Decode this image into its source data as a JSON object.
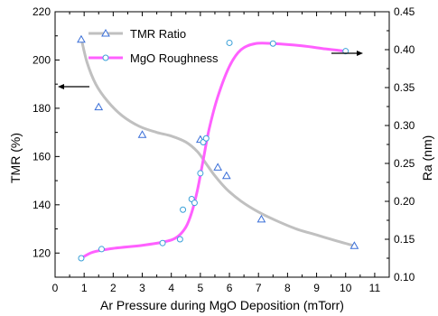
{
  "chart_data": {
    "type": "line",
    "xlabel": "Ar  Pressure during MgO Deposition (mTorr)",
    "ylabel_left": "TMR (%)",
    "ylabel_right": "Ra (nm)",
    "xlim": [
      0,
      11.5
    ],
    "ylim_left": [
      110,
      220
    ],
    "ylim_right": [
      0.1,
      0.45
    ],
    "x_ticks": [
      "0",
      "1",
      "2",
      "3",
      "4",
      "5",
      "6",
      "7",
      "8",
      "9",
      "10",
      "11"
    ],
    "y_left_ticks": [
      "120",
      "140",
      "160",
      "180",
      "200",
      "220"
    ],
    "y_right_ticks": [
      "0.10",
      "0.15",
      "0.20",
      "0.25",
      "0.30",
      "0.35",
      "0.40",
      "0.45"
    ],
    "legend_position": "top-left",
    "series": [
      {
        "name": "TMR Ratio",
        "axis": "left",
        "color": "#c0c0c0",
        "marker": "triangle",
        "marker_color": "#3a6fd8",
        "points": [
          [
            0.9,
            208.5
          ],
          [
            1.5,
            180.5
          ],
          [
            3.0,
            169
          ],
          [
            5.0,
            167
          ],
          [
            5.6,
            155.5
          ],
          [
            5.9,
            152
          ],
          [
            7.1,
            134
          ],
          [
            10.3,
            123
          ]
        ],
        "fit": [
          [
            0.9,
            209
          ],
          [
            1.1,
            199
          ],
          [
            1.4,
            190
          ],
          [
            1.8,
            183
          ],
          [
            2.3,
            177
          ],
          [
            2.9,
            172.5
          ],
          [
            3.5,
            170
          ],
          [
            4.0,
            168.5
          ],
          [
            4.5,
            166
          ],
          [
            4.9,
            162
          ],
          [
            5.2,
            157
          ],
          [
            5.5,
            152
          ],
          [
            5.9,
            146.5
          ],
          [
            6.4,
            141.5
          ],
          [
            7.0,
            137
          ],
          [
            7.6,
            133.5
          ],
          [
            8.3,
            130
          ],
          [
            9.0,
            127.5
          ],
          [
            9.7,
            125
          ],
          [
            10.3,
            123
          ]
        ]
      },
      {
        "name": "MgO Roughness",
        "axis": "right",
        "color": "#ff60ff",
        "marker": "circle",
        "marker_color": "#3aa0d8",
        "points": [
          [
            0.9,
            0.125
          ],
          [
            1.6,
            0.137
          ],
          [
            3.7,
            0.145
          ],
          [
            4.3,
            0.15
          ],
          [
            4.4,
            0.189
          ],
          [
            4.7,
            0.203
          ],
          [
            4.8,
            0.198
          ],
          [
            5.0,
            0.237
          ],
          [
            5.1,
            0.278
          ],
          [
            5.2,
            0.283
          ],
          [
            6.0,
            0.409
          ],
          [
            7.5,
            0.408
          ],
          [
            10.0,
            0.398
          ]
        ],
        "fit": [
          [
            0.9,
            0.125
          ],
          [
            1.3,
            0.133
          ],
          [
            2.0,
            0.138
          ],
          [
            3.0,
            0.142
          ],
          [
            3.8,
            0.147
          ],
          [
            4.2,
            0.153
          ],
          [
            4.5,
            0.166
          ],
          [
            4.7,
            0.185
          ],
          [
            4.9,
            0.215
          ],
          [
            5.1,
            0.255
          ],
          [
            5.3,
            0.295
          ],
          [
            5.6,
            0.338
          ],
          [
            6.0,
            0.378
          ],
          [
            6.4,
            0.4
          ],
          [
            6.9,
            0.408
          ],
          [
            7.5,
            0.408
          ],
          [
            8.5,
            0.405
          ],
          [
            9.3,
            0.401
          ],
          [
            10.0,
            0.398
          ]
        ]
      }
    ],
    "annotations": [
      {
        "type": "arrow",
        "direction": "left",
        "meaning": "TMR Ratio uses left axis"
      },
      {
        "type": "arrow",
        "direction": "right",
        "meaning": "MgO Roughness uses right axis"
      }
    ]
  }
}
